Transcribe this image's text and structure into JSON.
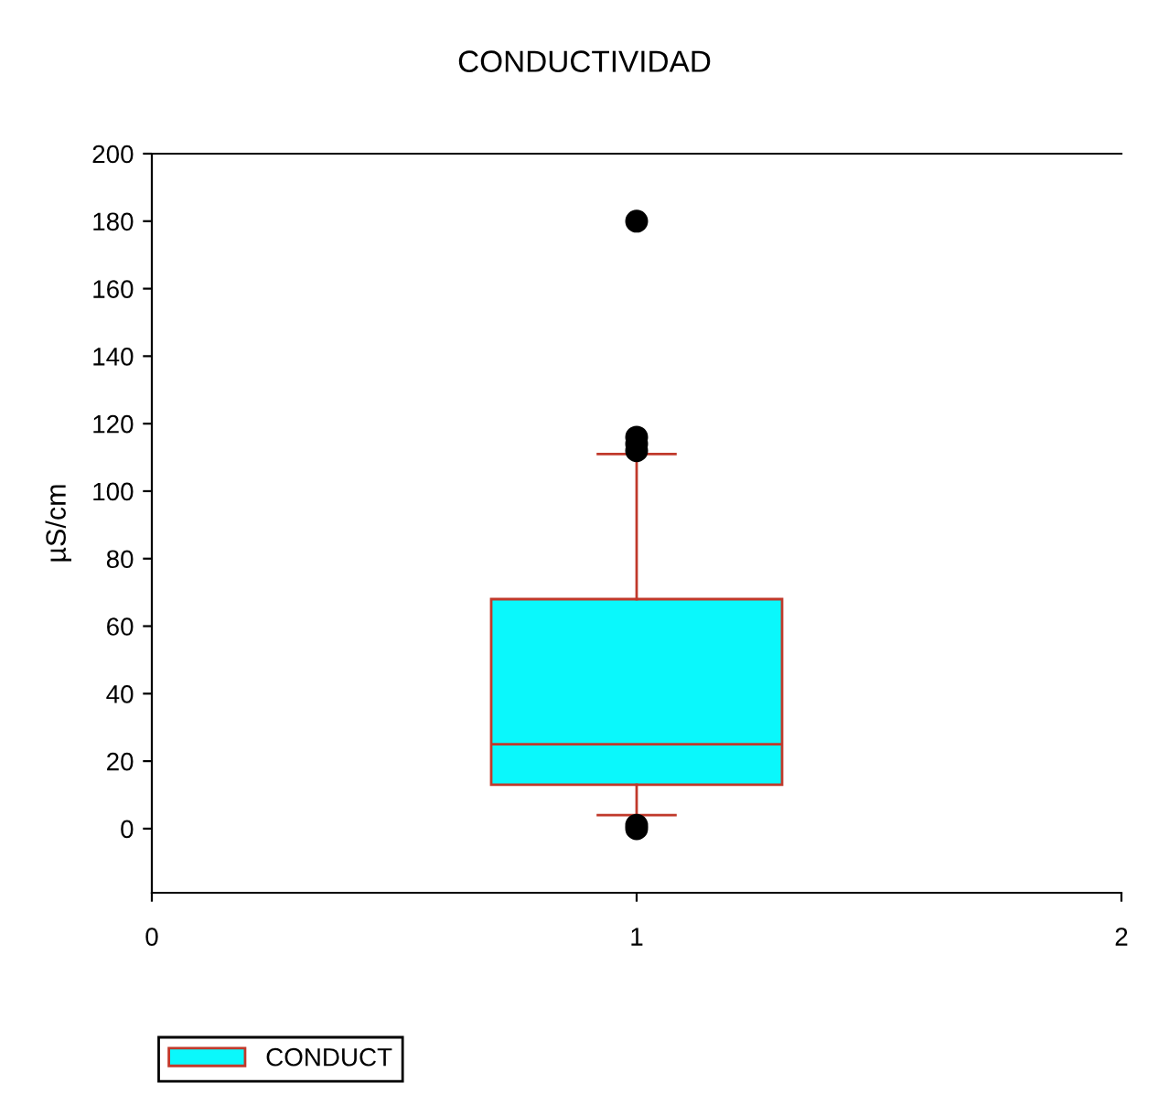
{
  "chart_data": {
    "type": "box",
    "title": "CONDUCTIVIDAD",
    "ylabel": "µS/cm",
    "categories": [
      "0",
      "1",
      "2"
    ],
    "ylim": [
      -19,
      200
    ],
    "yticks": [
      0,
      20,
      40,
      60,
      80,
      100,
      120,
      140,
      160,
      180,
      200
    ],
    "series": [
      {
        "name": "CONDUCT",
        "color": "#0af8fc",
        "boxes": [
          null,
          {
            "low": 4,
            "q1": 13,
            "median": 25,
            "q3": 68,
            "high": 111,
            "outliers": [
              180,
              116,
              114,
              112,
              1,
              0
            ]
          },
          null
        ]
      }
    ],
    "grid": false,
    "legend": "bottom left"
  }
}
